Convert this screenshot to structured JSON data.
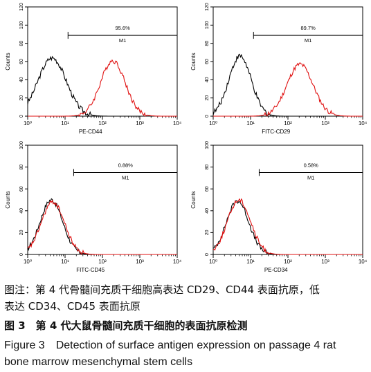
{
  "chart_data": [
    {
      "type": "line",
      "xlabel": "PE-CD44",
      "ylabel": "Counts",
      "x_scale": "log",
      "xlim": [
        1,
        10000
      ],
      "ylim": [
        0,
        120
      ],
      "x_ticks": [
        "10⁰",
        "10¹",
        "10²",
        "10³",
        "10⁴"
      ],
      "y_ticks": [
        "0",
        "20",
        "40",
        "60",
        "80",
        "100",
        "120"
      ],
      "marker": {
        "label": "M1",
        "percent": "95.6%",
        "range": [
          12,
          10000
        ]
      },
      "series": [
        {
          "color": "#000000",
          "peak_x": 4.5,
          "peak_y": 64,
          "spread_decades": 0.38
        },
        {
          "color": "#e01010",
          "peak_x": 190,
          "peak_y": 61,
          "spread_decades": 0.33
        }
      ]
    },
    {
      "type": "line",
      "xlabel": "FITC-CD29",
      "ylabel": "Counts",
      "x_scale": "log",
      "xlim": [
        1,
        10000
      ],
      "ylim": [
        0,
        120
      ],
      "x_ticks": [
        "10⁰",
        "10¹",
        "10²",
        "10³",
        "10⁴"
      ],
      "y_ticks": [
        "0",
        "20",
        "40",
        "60",
        "80",
        "100",
        "120"
      ],
      "marker": {
        "label": "M1",
        "percent": "89.7%",
        "range": [
          12,
          10000
        ]
      },
      "series": [
        {
          "color": "#000000",
          "peak_x": 5.2,
          "peak_y": 66,
          "spread_decades": 0.3
        },
        {
          "color": "#e01010",
          "peak_x": 210,
          "peak_y": 57,
          "spread_decades": 0.35
        }
      ]
    },
    {
      "type": "line",
      "xlabel": "FITC-CD45",
      "ylabel": "Counts",
      "x_scale": "log",
      "xlim": [
        1,
        10000
      ],
      "ylim": [
        0,
        100
      ],
      "x_ticks": [
        "10⁰",
        "10¹",
        "10²",
        "10³",
        "10⁴"
      ],
      "y_ticks": [
        "0",
        "20",
        "40",
        "60",
        "80",
        "100"
      ],
      "marker": {
        "label": "M1",
        "percent": "0.88%",
        "range": [
          17,
          10000
        ]
      },
      "series": [
        {
          "color": "#000000",
          "peak_x": 4.3,
          "peak_y": 50,
          "spread_decades": 0.3
        },
        {
          "color": "#e01010",
          "peak_x": 4.7,
          "peak_y": 48,
          "spread_decades": 0.31
        }
      ]
    },
    {
      "type": "line",
      "xlabel": "PE-CD34",
      "ylabel": "Counts",
      "x_scale": "log",
      "xlim": [
        1,
        10000
      ],
      "ylim": [
        0,
        100
      ],
      "x_ticks": [
        "10⁰",
        "10¹",
        "10²",
        "10³",
        "10⁴"
      ],
      "y_ticks": [
        "0",
        "20",
        "40",
        "60",
        "80",
        "100"
      ],
      "marker": {
        "label": "M1",
        "percent": "0.58%",
        "range": [
          17,
          10000
        ]
      },
      "series": [
        {
          "color": "#000000",
          "peak_x": 4.5,
          "peak_y": 49,
          "spread_decades": 0.3
        },
        {
          "color": "#e01010",
          "peak_x": 4.9,
          "peak_y": 50,
          "spread_decades": 0.31
        }
      ]
    }
  ],
  "caption": {
    "note_line1": "图注：第 4 代骨髓间充质干细胞高表达 CD29、CD44 表面抗原，低",
    "note_line2": "表达 CD34、CD45 表面抗原",
    "title_cn": "图 3　第 4 代大鼠骨髓间充质干细胞的表面抗原检测",
    "title_en_line1": "Figure 3　Detection of surface antigen expression on passage 4 rat",
    "title_en_line2": "bone marrow mesenchymal stem cells"
  }
}
